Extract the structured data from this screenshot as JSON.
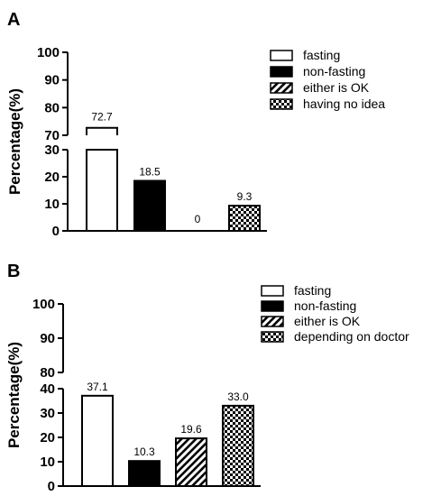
{
  "chart_data": [
    {
      "panel": "A",
      "type": "bar",
      "ylabel": "Percentage(%)",
      "axis_break": {
        "lower": [
          0,
          30
        ],
        "upper": [
          70,
          100
        ]
      },
      "yticks_lower": [
        "0",
        "10",
        "20",
        "30"
      ],
      "yticks_upper": [
        "70",
        "80",
        "90",
        "100"
      ],
      "categories": [
        "fasting",
        "non-fasting",
        "either is OK",
        "having no idea"
      ],
      "values": [
        72.7,
        18.5,
        0,
        9.3
      ],
      "labels": [
        "72.7",
        "18.5",
        "0",
        "9.3"
      ],
      "patterns": [
        "white",
        "black",
        "hatch",
        "checker"
      ],
      "legend": [
        "fasting",
        "non-fasting",
        "either is OK",
        "having no idea"
      ],
      "legend_placement": "top-right",
      "grid": false
    },
    {
      "panel": "B",
      "type": "bar",
      "ylabel": "Percentage(%)",
      "axis_break": {
        "lower": [
          0,
          40
        ],
        "upper": [
          80,
          100
        ]
      },
      "yticks_lower": [
        "0",
        "10",
        "20",
        "30",
        "40"
      ],
      "yticks_upper": [
        "80",
        "90",
        "100"
      ],
      "categories": [
        "fasting",
        "non-fasting",
        "either is OK",
        "depending on doctor"
      ],
      "values": [
        37.1,
        10.3,
        19.6,
        33.0
      ],
      "labels": [
        "37.1",
        "10.3",
        "19.6",
        "33.0"
      ],
      "patterns": [
        "white",
        "black",
        "hatch",
        "checker"
      ],
      "legend": [
        "fasting",
        "non-fasting",
        "either is OK",
        "depending on doctor"
      ],
      "legend_placement": "top-right",
      "grid": false
    }
  ]
}
